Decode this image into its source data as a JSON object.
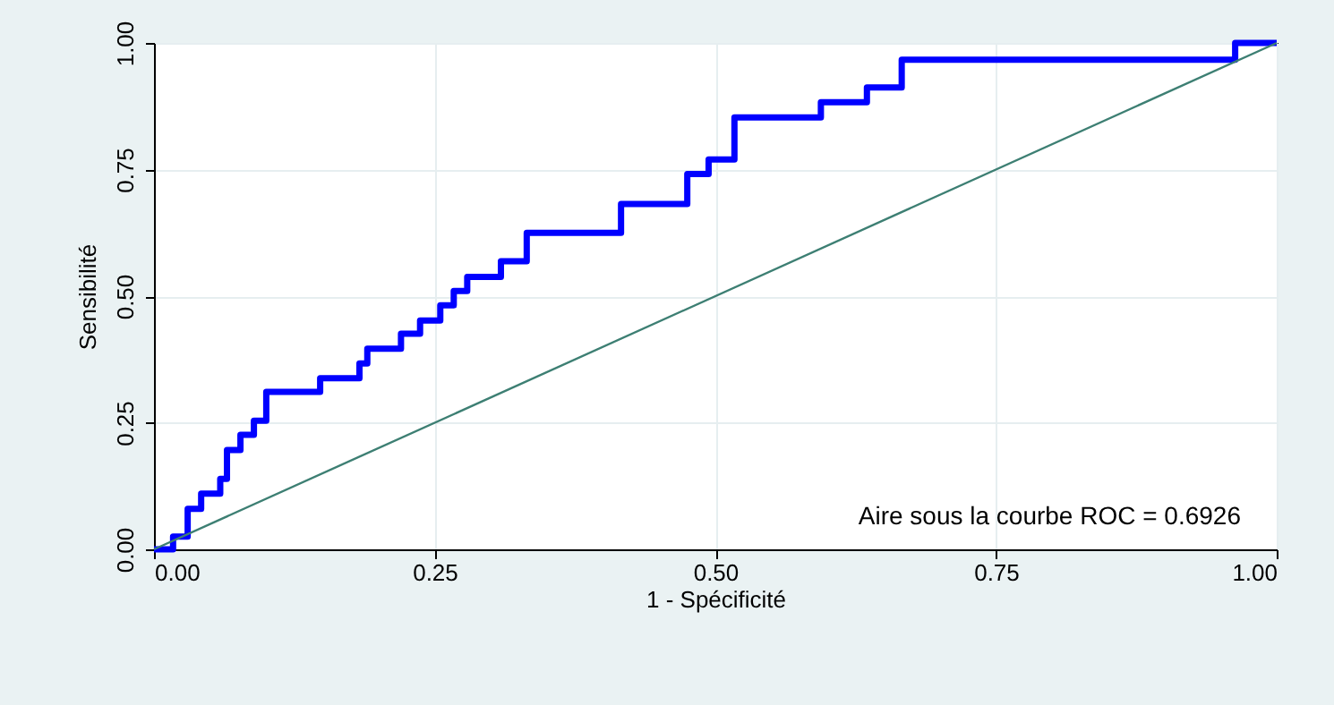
{
  "chart_data": {
    "type": "step",
    "xlabel": "1 - Spécificité",
    "ylabel": "Sensibilité",
    "xlim": [
      0,
      1
    ],
    "ylim": [
      0,
      1
    ],
    "xticks": [
      {
        "value": 0,
        "label": "0.00"
      },
      {
        "value": 0.25,
        "label": "0.25"
      },
      {
        "value": 0.5,
        "label": "0.50"
      },
      {
        "value": 0.75,
        "label": "0.75"
      },
      {
        "value": 1,
        "label": "1.00"
      }
    ],
    "yticks": [
      {
        "value": 0,
        "label": "0.00"
      },
      {
        "value": 0.25,
        "label": "0.25"
      },
      {
        "value": 0.5,
        "label": "0.50"
      },
      {
        "value": 0.75,
        "label": "0.75"
      },
      {
        "value": 1,
        "label": "1.00"
      }
    ],
    "grid": true,
    "marker": "none",
    "series": [
      {
        "color": "#0000ff",
        "x": [
          0,
          0.017,
          0.03,
          0.042,
          0.059,
          0.065,
          0.077,
          0.089,
          0.1,
          0.148,
          0.183,
          0.19,
          0.22,
          0.237,
          0.255,
          0.267,
          0.279,
          0.309,
          0.332,
          0.416,
          0.475,
          0.494,
          0.517,
          0.594,
          0.635,
          0.666,
          0.963,
          1.0
        ],
        "values": [
          0,
          0.025,
          0.08,
          0.11,
          0.139,
          0.196,
          0.226,
          0.254,
          0.311,
          0.338,
          0.367,
          0.396,
          0.426,
          0.452,
          0.482,
          0.51,
          0.538,
          0.569,
          0.625,
          0.682,
          0.741,
          0.77,
          0.853,
          0.883,
          0.912,
          0.967,
          1.0,
          1.0
        ]
      },
      {
        "type": "line",
        "color": "#3d7f73",
        "x": [
          0,
          1
        ],
        "values": [
          0,
          1
        ]
      }
    ],
    "annotations": [
      "Aire sous la courbe ROC = 0.6926"
    ]
  }
}
